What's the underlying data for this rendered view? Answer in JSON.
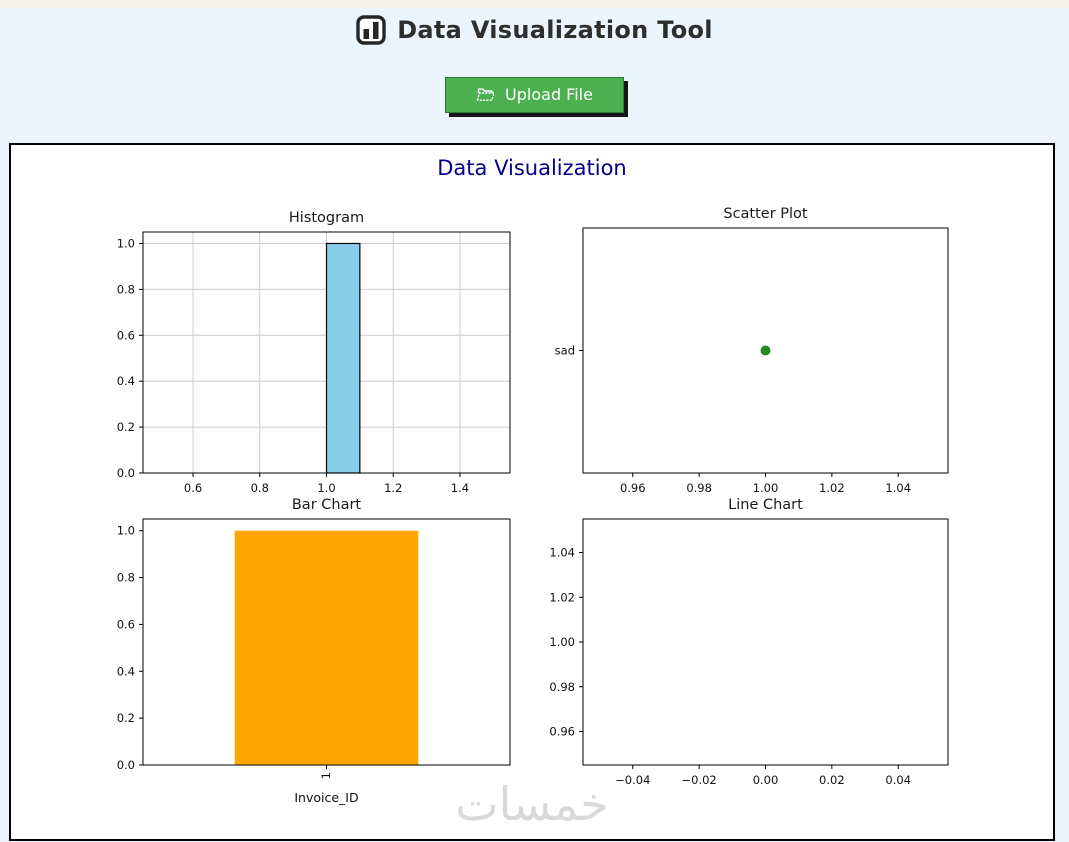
{
  "page": {
    "background_color": "#ecf5fd",
    "top_strip_color": "#f5f1ec"
  },
  "header": {
    "title": "Data Visualization Tool",
    "icon": "bar-chart-icon"
  },
  "upload": {
    "label": "Upload File",
    "icon": "open-folder-icon",
    "button_color": "#4caf50",
    "shadow_color": "#161616"
  },
  "panel": {
    "heading": "Data Visualization",
    "heading_color": "#00008b"
  },
  "watermark": {
    "text": "خمسات",
    "color": "#d9d9d9"
  },
  "chart_data": [
    {
      "type": "bar",
      "title": "Histogram",
      "xlabel": "",
      "ylabel": "",
      "grid": true,
      "xlim": [
        0.45,
        1.55
      ],
      "ylim": [
        0,
        1.05
      ],
      "xticks": [
        {
          "v": 0.6,
          "label": "0.6"
        },
        {
          "v": 0.8,
          "label": "0.8"
        },
        {
          "v": 1.0,
          "label": "1.0"
        },
        {
          "v": 1.2,
          "label": "1.2"
        },
        {
          "v": 1.4,
          "label": "1.4"
        }
      ],
      "yticks": [
        {
          "v": 0.0,
          "label": "0.0"
        },
        {
          "v": 0.2,
          "label": "0.2"
        },
        {
          "v": 0.4,
          "label": "0.4"
        },
        {
          "v": 0.6,
          "label": "0.6"
        },
        {
          "v": 0.8,
          "label": "0.8"
        },
        {
          "v": 1.0,
          "label": "1.0"
        }
      ],
      "bars": [
        {
          "x0": 1.0,
          "x1": 1.1,
          "value": 1.0,
          "fill": "#87ceeb",
          "edge": "#000000"
        }
      ]
    },
    {
      "type": "scatter",
      "title": "Scatter Plot",
      "xlabel": "",
      "ylabel": "",
      "grid": false,
      "xlim": [
        0.945,
        1.055
      ],
      "ylim": [
        -0.055,
        0.055
      ],
      "xticks": [
        {
          "v": 0.96,
          "label": "0.96"
        },
        {
          "v": 0.98,
          "label": "0.98"
        },
        {
          "v": 1.0,
          "label": "1.00"
        },
        {
          "v": 1.02,
          "label": "1.02"
        },
        {
          "v": 1.04,
          "label": "1.04"
        }
      ],
      "yticks": [
        {
          "v": 0,
          "label": "sad"
        }
      ],
      "points": [
        {
          "x": 1.0,
          "y": 0,
          "y_category": "sad",
          "fill": "#228b22",
          "r": 5
        }
      ]
    },
    {
      "type": "bar",
      "title": "Bar Chart",
      "xlabel": "Invoice_ID",
      "ylabel": "",
      "grid": false,
      "categories": [
        "1"
      ],
      "values": [
        1.0
      ],
      "xlim": [
        -0.5,
        0.5
      ],
      "ylim": [
        0,
        1.05
      ],
      "xticks": [
        {
          "v": 0,
          "label": "1",
          "rotate": 90
        }
      ],
      "yticks": [
        {
          "v": 0.0,
          "label": "0.0"
        },
        {
          "v": 0.2,
          "label": "0.2"
        },
        {
          "v": 0.4,
          "label": "0.4"
        },
        {
          "v": 0.6,
          "label": "0.6"
        },
        {
          "v": 0.8,
          "label": "0.8"
        },
        {
          "v": 1.0,
          "label": "1.0"
        }
      ],
      "bars": [
        {
          "x0": -0.25,
          "x1": 0.25,
          "value": 1.0,
          "fill": "#ffa500"
        }
      ]
    },
    {
      "type": "line",
      "title": "Line Chart",
      "xlabel": "",
      "ylabel": "",
      "grid": false,
      "xlim": [
        -0.055,
        0.055
      ],
      "ylim": [
        0.945,
        1.055
      ],
      "xticks": [
        {
          "v": -0.04,
          "label": "−0.04"
        },
        {
          "v": -0.02,
          "label": "−0.02"
        },
        {
          "v": 0.0,
          "label": "0.00"
        },
        {
          "v": 0.02,
          "label": "0.02"
        },
        {
          "v": 0.04,
          "label": "0.04"
        }
      ],
      "yticks": [
        {
          "v": 0.96,
          "label": "0.96"
        },
        {
          "v": 0.98,
          "label": "0.98"
        },
        {
          "v": 1.0,
          "label": "1.00"
        },
        {
          "v": 1.02,
          "label": "1.02"
        },
        {
          "v": 1.04,
          "label": "1.04"
        }
      ],
      "series": []
    }
  ]
}
